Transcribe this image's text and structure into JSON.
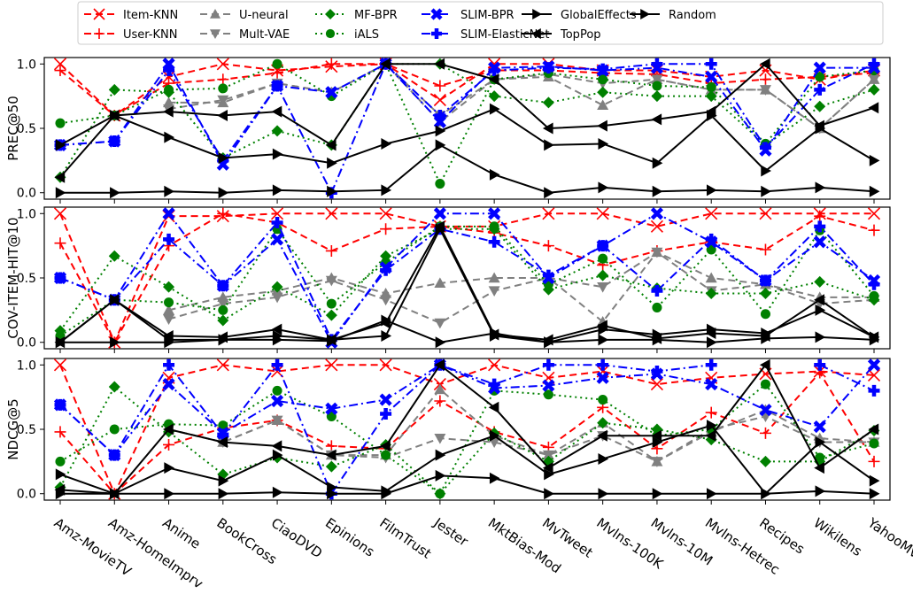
{
  "chart_data": {
    "type": "line",
    "categories": [
      "Amz-MovieTV",
      "Amz-HomeImprv",
      "Anime",
      "BookCross",
      "CiaoDVD",
      "Epinions",
      "FilmTrust",
      "Jester",
      "MktBias-Mod",
      "MvTweet",
      "Mvlns-100K",
      "Mvlns-10M",
      "Mvlns-Hetrec",
      "Recipes",
      "Wikilens",
      "YahooMv"
    ],
    "legend": [
      {
        "name": "Item-KNN",
        "color": "#ff0000",
        "dash": "8,5",
        "marker": "x"
      },
      {
        "name": "User-KNN",
        "color": "#ff0000",
        "dash": "8,5",
        "marker": "plus"
      },
      {
        "name": "U-neural",
        "color": "#808080",
        "dash": "8,5",
        "marker": "triangle-up"
      },
      {
        "name": "Mult-VAE",
        "color": "#808080",
        "dash": "8,5",
        "marker": "triangle-down"
      },
      {
        "name": "MF-BPR",
        "color": "#008000",
        "dash": "2,4",
        "marker": "diamond"
      },
      {
        "name": "iALS",
        "color": "#008000",
        "dash": "2,4",
        "marker": "circle"
      },
      {
        "name": "SLIM-BPR",
        "color": "#0000ff",
        "dash": "10,4,2,4",
        "marker": "x-thick"
      },
      {
        "name": "SLIM-ElasticNet",
        "color": "#0000ff",
        "dash": "10,4,2,4",
        "marker": "plus-thick"
      },
      {
        "name": "GlobalEffects",
        "color": "#000000",
        "dash": "",
        "marker": "triangle-right"
      },
      {
        "name": "TopPop",
        "color": "#000000",
        "dash": "",
        "marker": "triangle-left"
      },
      {
        "name": "Random",
        "color": "#000000",
        "dash": "",
        "marker": "triangle-right"
      }
    ],
    "panels": [
      {
        "ylabel": "PREC@50",
        "ylim": [
          -0.05,
          1.05
        ],
        "yticks": [
          0.0,
          0.5,
          1.0
        ],
        "series": [
          {
            "name": "Item-KNN",
            "values": [
              1.0,
              0.6,
              0.9,
              1.0,
              0.95,
              0.98,
              1.0,
              0.72,
              1.0,
              1.0,
              0.95,
              0.95,
              0.9,
              0.95,
              0.88,
              0.95
            ]
          },
          {
            "name": "User-KNN",
            "values": [
              0.95,
              0.6,
              0.85,
              0.88,
              0.93,
              1.0,
              1.0,
              0.83,
              0.95,
              0.95,
              0.93,
              0.92,
              0.85,
              0.88,
              0.9,
              0.93
            ]
          },
          {
            "name": "U-neural",
            "values": [
              null,
              null,
              0.7,
              0.7,
              0.85,
              0.78,
              1.0,
              0.55,
              0.88,
              0.9,
              0.68,
              0.88,
              0.8,
              0.8,
              0.5,
              0.88
            ]
          },
          {
            "name": "Mult-VAE",
            "values": [
              null,
              null,
              0.65,
              0.72,
              0.85,
              0.78,
              1.0,
              0.6,
              0.88,
              0.92,
              0.85,
              0.88,
              0.8,
              0.8,
              0.5,
              0.88
            ]
          },
          {
            "name": "MF-BPR",
            "values": [
              0.12,
              0.8,
              0.78,
              0.27,
              0.48,
              0.37,
              1.0,
              1.0,
              0.75,
              0.7,
              0.78,
              0.75,
              0.75,
              0.37,
              0.67,
              0.8
            ]
          },
          {
            "name": "iALS",
            "values": [
              0.54,
              0.6,
              0.8,
              0.81,
              1.0,
              0.75,
              1.0,
              0.07,
              0.88,
              0.93,
              0.88,
              0.83,
              0.82,
              0.38,
              0.9,
              0.95
            ]
          },
          {
            "name": "SLIM-BPR",
            "values": [
              0.37,
              0.4,
              1.0,
              0.22,
              0.83,
              0.78,
              1.0,
              0.55,
              0.97,
              0.98,
              0.95,
              0.97,
              0.9,
              0.33,
              0.97,
              0.97
            ]
          },
          {
            "name": "SLIM-ElasticNet",
            "values": [
              0.37,
              0.4,
              0.95,
              0.25,
              0.83,
              0.0,
              1.0,
              0.6,
              0.95,
              0.97,
              0.96,
              1.0,
              1.0,
              0.35,
              0.8,
              1.0
            ]
          },
          {
            "name": "GlobalEffects",
            "values": [
              0.37,
              0.6,
              0.43,
              0.27,
              0.3,
              0.23,
              0.38,
              0.48,
              0.65,
              0.37,
              0.38,
              0.23,
              0.6,
              0.17,
              0.5,
              0.25
            ]
          },
          {
            "name": "TopPop",
            "values": [
              0.12,
              0.6,
              0.63,
              0.6,
              0.63,
              0.37,
              1.0,
              1.0,
              0.88,
              0.5,
              0.52,
              0.57,
              0.63,
              1.0,
              0.52,
              0.66
            ]
          },
          {
            "name": "Random",
            "values": [
              0.0,
              0.0,
              0.01,
              0.0,
              0.02,
              0.01,
              0.02,
              0.37,
              0.14,
              0.0,
              0.04,
              0.01,
              0.02,
              0.01,
              0.04,
              0.01
            ]
          }
        ]
      },
      {
        "ylabel": "COV-ITEM-HIT@10",
        "ylim": [
          -0.05,
          1.05
        ],
        "yticks": [
          0.0,
          0.5,
          1.0
        ],
        "series": [
          {
            "name": "Item-KNN",
            "values": [
              1.0,
              0.0,
              0.98,
              0.98,
              1.0,
              1.0,
              1.0,
              0.9,
              0.9,
              1.0,
              1.0,
              0.9,
              1.0,
              1.0,
              1.0,
              1.0
            ]
          },
          {
            "name": "User-KNN",
            "values": [
              0.77,
              0.0,
              0.75,
              1.0,
              0.93,
              0.71,
              0.88,
              0.9,
              0.85,
              0.75,
              0.6,
              0.71,
              0.78,
              0.72,
              0.98,
              0.87
            ]
          },
          {
            "name": "U-neural",
            "values": [
              null,
              null,
              0.25,
              0.35,
              0.4,
              0.5,
              0.38,
              0.46,
              0.5,
              0.5,
              0.16,
              0.7,
              0.5,
              0.45,
              0.35,
              0.35
            ]
          },
          {
            "name": "Mult-VAE",
            "values": [
              null,
              null,
              0.18,
              0.3,
              0.35,
              0.48,
              0.33,
              0.15,
              0.4,
              0.5,
              0.43,
              0.7,
              0.4,
              0.45,
              0.3,
              0.33
            ]
          },
          {
            "name": "MF-BPR",
            "values": [
              0.09,
              0.67,
              0.43,
              0.17,
              0.43,
              0.21,
              0.67,
              0.88,
              0.88,
              0.41,
              0.52,
              0.42,
              0.38,
              0.38,
              0.47,
              0.33
            ]
          },
          {
            "name": "iALS",
            "values": [
              0.05,
              0.33,
              0.31,
              0.25,
              0.88,
              0.3,
              0.62,
              0.9,
              0.9,
              0.45,
              0.65,
              0.27,
              0.72,
              0.22,
              0.87,
              0.36
            ]
          },
          {
            "name": "SLIM-BPR",
            "values": [
              0.5,
              0.33,
              1.0,
              0.44,
              0.8,
              0.0,
              0.58,
              1.0,
              1.0,
              0.5,
              0.75,
              1.0,
              0.78,
              0.48,
              0.78,
              0.48
            ]
          },
          {
            "name": "SLIM-ElasticNet",
            "values": [
              0.5,
              0.33,
              0.8,
              0.44,
              0.93,
              0.02,
              0.56,
              0.88,
              0.78,
              0.52,
              0.75,
              0.4,
              0.8,
              0.48,
              0.9,
              0.45
            ]
          },
          {
            "name": "GlobalEffects",
            "values": [
              0.0,
              0.33,
              0.02,
              0.02,
              0.05,
              0.02,
              0.05,
              0.88,
              0.05,
              0.0,
              0.1,
              0.06,
              0.1,
              0.07,
              0.25,
              0.04
            ]
          },
          {
            "name": "TopPop",
            "values": [
              0.0,
              0.33,
              0.05,
              0.04,
              0.1,
              0.02,
              0.15,
              0.9,
              0.06,
              0.02,
              0.13,
              0.03,
              0.07,
              0.05,
              0.33,
              0.04
            ]
          },
          {
            "name": "Random",
            "values": [
              0.0,
              0.0,
              0.0,
              0.02,
              0.02,
              0.01,
              0.17,
              0.0,
              0.07,
              0.0,
              0.02,
              0.02,
              0.0,
              0.03,
              0.04,
              0.02
            ]
          }
        ]
      },
      {
        "ylabel": "NDCG@5",
        "ylim": [
          -0.05,
          1.05
        ],
        "yticks": [
          0.0,
          0.5,
          1.0
        ],
        "series": [
          {
            "name": "Item-KNN",
            "values": [
              1.0,
              0.0,
              0.9,
              1.0,
              0.95,
              1.0,
              1.0,
              0.85,
              1.0,
              0.9,
              0.95,
              0.85,
              0.9,
              0.93,
              0.95,
              0.92
            ]
          },
          {
            "name": "User-KNN",
            "values": [
              0.48,
              0.0,
              0.38,
              0.51,
              0.57,
              0.37,
              0.35,
              0.72,
              0.48,
              0.36,
              0.67,
              0.35,
              0.63,
              0.47,
              0.94,
              0.25
            ]
          },
          {
            "name": "U-neural",
            "values": [
              null,
              null,
              0.5,
              0.4,
              0.57,
              0.3,
              0.3,
              0.81,
              0.45,
              0.3,
              0.55,
              0.25,
              0.48,
              0.65,
              0.43,
              0.4
            ]
          },
          {
            "name": "Mult-VAE",
            "values": [
              null,
              null,
              0.5,
              0.4,
              0.57,
              0.3,
              0.28,
              0.43,
              0.4,
              0.3,
              0.45,
              0.25,
              0.5,
              0.6,
              0.4,
              0.4
            ]
          },
          {
            "name": "MF-BPR",
            "values": [
              0.05,
              0.83,
              0.48,
              0.15,
              0.28,
              0.21,
              0.38,
              0.0,
              0.47,
              0.25,
              0.55,
              0.5,
              0.42,
              0.25,
              0.25,
              0.49
            ]
          },
          {
            "name": "iALS",
            "values": [
              0.25,
              0.5,
              0.54,
              0.53,
              0.8,
              0.6,
              0.3,
              0.0,
              0.8,
              0.77,
              0.73,
              0.45,
              0.5,
              0.85,
              0.28,
              0.39
            ]
          },
          {
            "name": "SLIM-BPR",
            "values": [
              0.69,
              0.3,
              0.85,
              0.47,
              0.72,
              0.66,
              0.73,
              1.0,
              0.82,
              0.84,
              0.9,
              0.93,
              0.85,
              0.65,
              0.52,
              1.0
            ]
          },
          {
            "name": "SLIM-ElasticNet",
            "values": [
              0.69,
              0.3,
              1.0,
              0.46,
              1.0,
              0.0,
              0.62,
              1.0,
              0.85,
              1.0,
              1.0,
              0.95,
              1.0,
              null,
              1.0,
              0.8
            ]
          },
          {
            "name": "GlobalEffects",
            "values": [
              0.15,
              0.0,
              0.2,
              0.1,
              0.3,
              0.05,
              0.02,
              0.3,
              0.45,
              0.15,
              0.27,
              0.4,
              0.53,
              0.0,
              0.4,
              0.1
            ]
          },
          {
            "name": "TopPop",
            "values": [
              0.03,
              0.0,
              0.5,
              0.4,
              0.37,
              0.3,
              0.37,
              1.0,
              0.67,
              0.2,
              0.45,
              0.45,
              0.45,
              1.0,
              0.2,
              0.5
            ]
          },
          {
            "name": "Random",
            "values": [
              0.0,
              0.0,
              0.0,
              0.0,
              0.01,
              0.0,
              0.0,
              0.14,
              0.12,
              0.0,
              0.0,
              0.0,
              0.0,
              0.0,
              0.02,
              0.0
            ]
          }
        ]
      }
    ]
  }
}
